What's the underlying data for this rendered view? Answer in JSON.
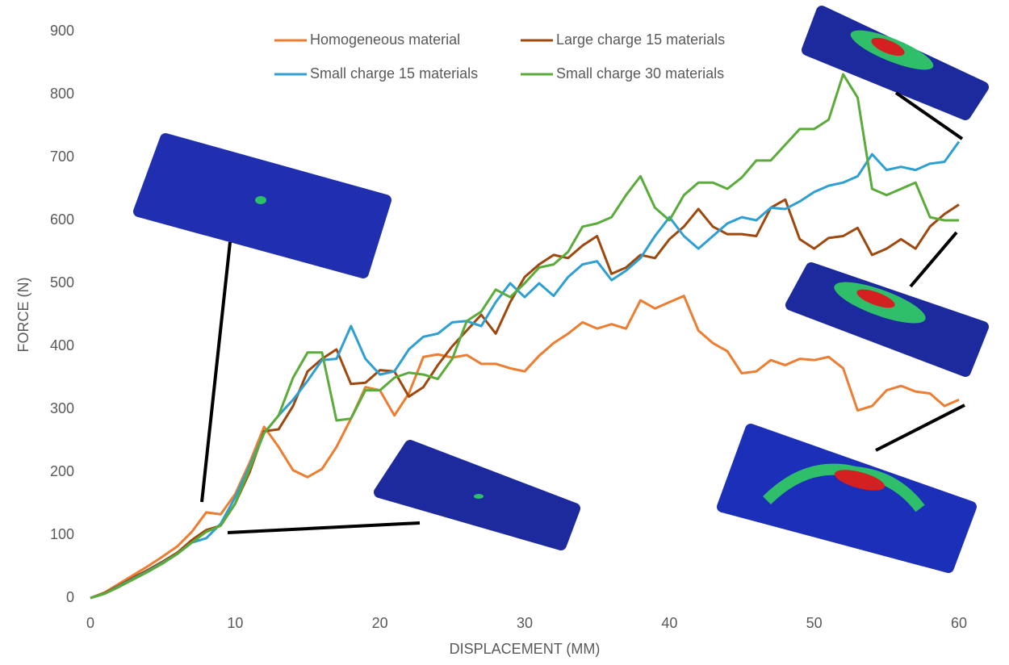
{
  "chart_data": {
    "type": "line",
    "x_label": "DISPLACEMENT (MM)",
    "y_label": "FORCE (N)",
    "x": [
      0,
      1,
      2,
      3,
      4,
      5,
      6,
      7,
      8,
      9,
      10,
      11,
      12,
      13,
      14,
      15,
      16,
      17,
      18,
      19,
      20,
      21,
      22,
      23,
      24,
      25,
      26,
      27,
      28,
      29,
      30,
      31,
      32,
      33,
      34,
      35,
      36,
      37,
      38,
      39,
      40,
      41,
      42,
      43,
      44,
      45,
      46,
      47,
      48,
      49,
      50,
      51,
      52,
      53,
      54,
      55,
      56,
      57,
      58,
      59,
      60
    ],
    "series": [
      {
        "name": "Homogeneous material",
        "color": "#ed7d31",
        "values": [
          0,
          9,
          23,
          37,
          51,
          66,
          82,
          105,
          136,
          133,
          165,
          215,
          272,
          240,
          203,
          192,
          205,
          240,
          285,
          335,
          330,
          290,
          325,
          383,
          387,
          382,
          386,
          372,
          372,
          365,
          360,
          385,
          405,
          420,
          438,
          428,
          435,
          428,
          473,
          460,
          470,
          480,
          425,
          405,
          392,
          357,
          360,
          378,
          370,
          380,
          378,
          383,
          365,
          298,
          305,
          330,
          337,
          328,
          325,
          305,
          315
        ]
      },
      {
        "name": "Large charge 15 materials",
        "color": "#9e480e",
        "values": [
          0,
          8,
          20,
          33,
          45,
          58,
          72,
          92,
          108,
          115,
          150,
          200,
          265,
          268,
          305,
          360,
          380,
          395,
          340,
          342,
          362,
          360,
          320,
          335,
          370,
          400,
          425,
          450,
          420,
          470,
          510,
          530,
          545,
          540,
          560,
          575,
          515,
          525,
          545,
          540,
          570,
          590,
          618,
          590,
          578,
          578,
          575,
          620,
          633,
          570,
          555,
          572,
          575,
          588,
          545,
          555,
          570,
          555,
          590,
          610,
          625
        ]
      },
      {
        "name": "Small charge 15 materials",
        "color": "#2e9fd3",
        "values": [
          0,
          7,
          19,
          31,
          43,
          56,
          70,
          88,
          95,
          118,
          160,
          210,
          262,
          290,
          315,
          345,
          378,
          380,
          432,
          380,
          355,
          360,
          395,
          415,
          420,
          438,
          440,
          432,
          470,
          500,
          478,
          500,
          480,
          510,
          530,
          535,
          505,
          520,
          540,
          575,
          605,
          575,
          555,
          575,
          595,
          605,
          600,
          620,
          618,
          630,
          645,
          655,
          660,
          670,
          705,
          680,
          685,
          680,
          690,
          693,
          725
        ]
      },
      {
        "name": "Small charge 30 materials",
        "color": "#5aab3a",
        "values": [
          0,
          7,
          18,
          30,
          42,
          55,
          70,
          88,
          105,
          115,
          150,
          205,
          262,
          290,
          350,
          390,
          390,
          282,
          285,
          330,
          330,
          350,
          358,
          355,
          348,
          380,
          440,
          455,
          490,
          478,
          500,
          525,
          530,
          550,
          590,
          595,
          605,
          640,
          670,
          620,
          600,
          640,
          660,
          660,
          650,
          668,
          695,
          695,
          720,
          745,
          745,
          760,
          832,
          795,
          650,
          640,
          650,
          660,
          605,
          600,
          600
        ]
      }
    ],
    "xlim": [
      0,
      60
    ],
    "xticks": [
      0,
      10,
      20,
      30,
      40,
      50,
      60
    ],
    "ylim": [
      0,
      900
    ],
    "yticks": [
      0,
      100,
      200,
      300,
      400,
      500,
      600,
      700,
      800,
      900
    ],
    "grid": false,
    "legend": "top"
  }
}
